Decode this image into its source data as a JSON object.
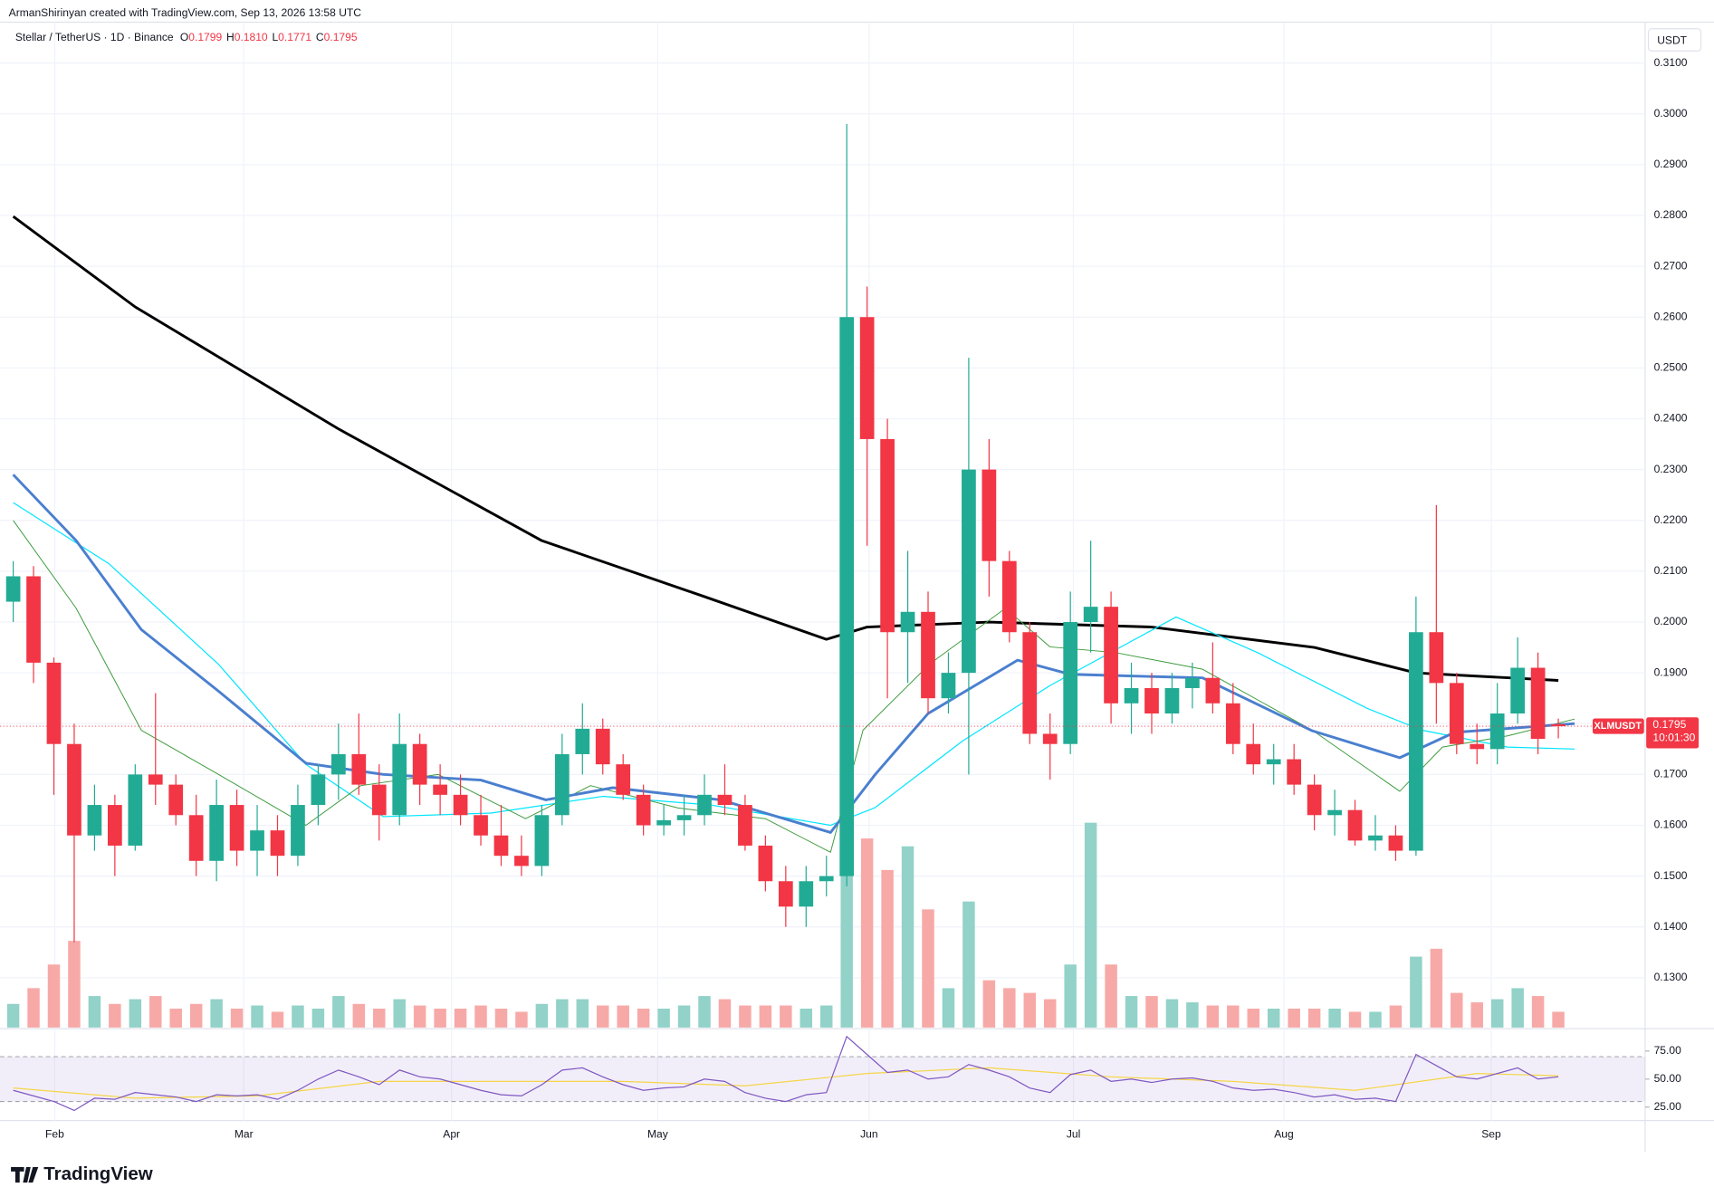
{
  "chart_data": {
    "type": "candlestick",
    "header": {
      "attribution": "ArmanShirinyan created with TradingView.com, Sep 13, 2026 13:58 UTC",
      "symbol": "Stellar / TetherUS · 1D · Binance",
      "ohlc": [
        {
          "key": "O",
          "value": "0.1799"
        },
        {
          "key": "H",
          "value": "0.1810"
        },
        {
          "key": "L",
          "value": "0.1771"
        },
        {
          "key": "C",
          "value": "0.1795"
        }
      ]
    },
    "currency": "USDT",
    "up_color": "#22ab94",
    "down_color": "#f23645",
    "up_volume_color": "#92d2c8",
    "down_volume_color": "#f7a9a7",
    "open": [
      0.204,
      0.209,
      0.192,
      0.176,
      0.158,
      0.164,
      0.156,
      0.17,
      0.168,
      0.162,
      0.153,
      0.164,
      0.155,
      0.159,
      0.154,
      0.164,
      0.17,
      0.174,
      0.168,
      0.162,
      0.176,
      0.168,
      0.166,
      0.162,
      0.158,
      0.154,
      0.152,
      0.162,
      0.174,
      0.179,
      0.172,
      0.166,
      0.16,
      0.161,
      0.162,
      0.166,
      0.164,
      0.156,
      0.149,
      0.144,
      0.149,
      0.15,
      0.26,
      0.236,
      0.198,
      0.202,
      0.185,
      0.19,
      0.23,
      0.212,
      0.198,
      0.178,
      0.176,
      0.2,
      0.203,
      0.184,
      0.187,
      0.182,
      0.187,
      0.189,
      0.184,
      0.176,
      0.172,
      0.173,
      0.168,
      0.162,
      0.163,
      0.157,
      0.158,
      0.155,
      0.198,
      0.188,
      0.176,
      0.175,
      0.182,
      0.191,
      0.1799
    ],
    "high": [
      0.212,
      0.211,
      0.193,
      0.18,
      0.168,
      0.166,
      0.172,
      0.186,
      0.17,
      0.166,
      0.169,
      0.167,
      0.164,
      0.162,
      0.168,
      0.172,
      0.18,
      0.182,
      0.172,
      0.182,
      0.178,
      0.172,
      0.17,
      0.166,
      0.164,
      0.158,
      0.164,
      0.178,
      0.184,
      0.181,
      0.174,
      0.168,
      0.164,
      0.166,
      0.17,
      0.172,
      0.166,
      0.158,
      0.152,
      0.152,
      0.154,
      0.298,
      0.266,
      0.24,
      0.214,
      0.206,
      0.194,
      0.252,
      0.236,
      0.214,
      0.2,
      0.182,
      0.206,
      0.216,
      0.206,
      0.192,
      0.19,
      0.19,
      0.192,
      0.196,
      0.188,
      0.18,
      0.176,
      0.176,
      0.17,
      0.167,
      0.165,
      0.162,
      0.16,
      0.205,
      0.223,
      0.19,
      0.18,
      0.188,
      0.197,
      0.194,
      0.181
    ],
    "low": [
      0.2,
      0.188,
      0.166,
      0.137,
      0.155,
      0.15,
      0.155,
      0.164,
      0.16,
      0.15,
      0.149,
      0.152,
      0.15,
      0.15,
      0.152,
      0.16,
      0.165,
      0.166,
      0.157,
      0.16,
      0.164,
      0.162,
      0.16,
      0.156,
      0.152,
      0.15,
      0.15,
      0.16,
      0.17,
      0.17,
      0.165,
      0.158,
      0.158,
      0.158,
      0.16,
      0.162,
      0.155,
      0.147,
      0.14,
      0.14,
      0.146,
      0.148,
      0.215,
      0.185,
      0.188,
      0.182,
      0.182,
      0.17,
      0.205,
      0.196,
      0.176,
      0.169,
      0.174,
      0.194,
      0.18,
      0.178,
      0.178,
      0.18,
      0.183,
      0.182,
      0.174,
      0.17,
      0.168,
      0.166,
      0.159,
      0.158,
      0.156,
      0.155,
      0.153,
      0.154,
      0.18,
      0.174,
      0.172,
      0.172,
      0.18,
      0.174,
      0.1771
    ],
    "close": [
      0.209,
      0.192,
      0.176,
      0.158,
      0.164,
      0.156,
      0.17,
      0.168,
      0.162,
      0.153,
      0.164,
      0.155,
      0.159,
      0.154,
      0.164,
      0.17,
      0.174,
      0.168,
      0.162,
      0.176,
      0.168,
      0.166,
      0.162,
      0.158,
      0.154,
      0.152,
      0.162,
      0.174,
      0.179,
      0.172,
      0.166,
      0.16,
      0.161,
      0.162,
      0.166,
      0.164,
      0.156,
      0.149,
      0.144,
      0.149,
      0.15,
      0.26,
      0.236,
      0.198,
      0.202,
      0.185,
      0.19,
      0.23,
      0.212,
      0.198,
      0.178,
      0.176,
      0.2,
      0.203,
      0.184,
      0.187,
      0.182,
      0.187,
      0.189,
      0.184,
      0.176,
      0.172,
      0.173,
      0.168,
      0.162,
      0.163,
      0.157,
      0.158,
      0.155,
      0.198,
      0.188,
      0.176,
      0.175,
      0.182,
      0.191,
      0.177,
      0.1795
    ],
    "volume": [
      15,
      25,
      40,
      55,
      20,
      15,
      18,
      20,
      12,
      15,
      18,
      12,
      14,
      10,
      14,
      12,
      20,
      15,
      12,
      18,
      14,
      12,
      12,
      14,
      12,
      10,
      15,
      18,
      18,
      14,
      14,
      12,
      12,
      14,
      20,
      18,
      14,
      14,
      14,
      12,
      14,
      130,
      120,
      100,
      115,
      75,
      25,
      80,
      30,
      25,
      22,
      18,
      40,
      130,
      40,
      20,
      20,
      18,
      16,
      14,
      14,
      12,
      12,
      12,
      12,
      12,
      10,
      10,
      14,
      45,
      50,
      22,
      16,
      18,
      25,
      20,
      10
    ],
    "xlim": [
      -0.65,
      80.27
    ],
    "xticks": [
      {
        "value": 2.04,
        "label": "Feb"
      },
      {
        "value": 11.34,
        "label": "Mar"
      },
      {
        "value": 21.56,
        "label": "Apr"
      },
      {
        "value": 31.7,
        "label": "May"
      },
      {
        "value": 42.1,
        "label": "Jun"
      },
      {
        "value": 52.15,
        "label": "Jul"
      },
      {
        "value": 62.5,
        "label": "Aug"
      },
      {
        "value": 72.7,
        "label": "Sep"
      }
    ],
    "ylim": [
      0.1202,
      0.3163
    ],
    "yticks": [
      {
        "value": 0.13,
        "label": "0.1300"
      },
      {
        "value": 0.14,
        "label": "0.1400"
      },
      {
        "value": 0.15,
        "label": "0.1500"
      },
      {
        "value": 0.16,
        "label": "0.1600"
      },
      {
        "value": 0.17,
        "label": "0.1700"
      },
      {
        "value": 0.18,
        "label": "0.1800"
      },
      {
        "value": 0.19,
        "label": "0.1900"
      },
      {
        "value": 0.2,
        "label": "0.2000"
      },
      {
        "value": 0.21,
        "label": "0.2100"
      },
      {
        "value": 0.22,
        "label": "0.2200"
      },
      {
        "value": 0.23,
        "label": "0.2300"
      },
      {
        "value": 0.24,
        "label": "0.2400"
      },
      {
        "value": 0.25,
        "label": "0.2500"
      },
      {
        "value": 0.26,
        "label": "0.2600"
      },
      {
        "value": 0.27,
        "label": "0.2700"
      },
      {
        "value": 0.28,
        "label": "0.2800"
      },
      {
        "value": 0.29,
        "label": "0.2900"
      },
      {
        "value": 0.3,
        "label": "0.3000"
      },
      {
        "value": 0.31,
        "label": "0.3100"
      }
    ],
    "lines": [
      {
        "color": "#000000",
        "width": 2.4,
        "x": [
          0,
          6,
          16,
          26,
          34,
          40,
          42,
          48,
          56,
          64,
          69,
          76
        ],
        "values": [
          0.2798,
          0.262,
          0.238,
          0.216,
          0.205,
          0.1966,
          0.199,
          0.2,
          0.199,
          0.195,
          0.19,
          0.1885
        ]
      },
      {
        "color": "#00e5ff",
        "width": 1,
        "x": [
          0,
          4.7,
          10.1,
          14.4,
          18.2,
          23.5,
          29,
          34.3,
          40.2,
          42.4,
          46.7,
          51,
          57.2,
          61.2,
          66.6,
          69.3,
          73.5,
          76.8
        ],
        "values": [
          0.2235,
          0.2115,
          0.1917,
          0.172,
          0.1617,
          0.1624,
          0.1657,
          0.164,
          0.16,
          0.1635,
          0.1766,
          0.1875,
          0.201,
          0.194,
          0.183,
          0.1787,
          0.1754,
          0.175
        ]
      },
      {
        "color": "#3c9a3c",
        "width": 0.8,
        "x": [
          0,
          3.1,
          6.3,
          10.1,
          14.4,
          17.1,
          20.9,
          25.2,
          28.4,
          32.7,
          37,
          40.2,
          41.8,
          45.1,
          48.8,
          51,
          54.2,
          58.5,
          63.9,
          68.2,
          70.3,
          73.5,
          76.8
        ],
        "values": [
          0.22,
          0.2027,
          0.1787,
          0.17,
          0.16,
          0.1678,
          0.17,
          0.1613,
          0.1678,
          0.1634,
          0.1613,
          0.1547,
          0.1787,
          0.1918,
          0.2027,
          0.1951,
          0.194,
          0.1907,
          0.1787,
          0.1667,
          0.1754,
          0.1776,
          0.1809
        ]
      },
      {
        "color": "#4a7fcf",
        "width": 2.4,
        "x": [
          0,
          3.1,
          6.3,
          10.1,
          14.4,
          18.2,
          23,
          26.2,
          29.5,
          34.8,
          40.2,
          42.4,
          45,
          49.4,
          52,
          58.5,
          63.9,
          68.2,
          70.9,
          76.8
        ],
        "values": [
          0.229,
          0.216,
          0.1985,
          0.1864,
          0.1722,
          0.17,
          0.1689,
          0.165,
          0.1674,
          0.165,
          0.1586,
          0.17,
          0.182,
          0.1925,
          0.1897,
          0.189,
          0.1786,
          0.1733,
          0.1783,
          0.18
        ]
      }
    ],
    "last_price": {
      "symbol": "XLMUSDT",
      "value": 0.1795,
      "label": "0.1795",
      "countdown": "10:01:30"
    },
    "rsi": {
      "ylim": [
        13,
        94
      ],
      "yticks": [
        {
          "value": 75,
          "label": "75.00"
        },
        {
          "value": 50,
          "label": "50.00"
        },
        {
          "value": 25,
          "label": "25.00"
        }
      ],
      "band": [
        30,
        70
      ],
      "color": "#7e57c2",
      "values": [
        40,
        35,
        30,
        22,
        33,
        32,
        38,
        36,
        34,
        30,
        36,
        35,
        36,
        32,
        40,
        50,
        58,
        52,
        45,
        58,
        52,
        50,
        45,
        40,
        36,
        35,
        45,
        58,
        60,
        52,
        45,
        40,
        42,
        43,
        50,
        48,
        38,
        33,
        30,
        36,
        38,
        88,
        72,
        56,
        58,
        50,
        52,
        63,
        58,
        52,
        42,
        38,
        54,
        58,
        48,
        50,
        47,
        50,
        51,
        48,
        42,
        40,
        41,
        38,
        34,
        36,
        32,
        33,
        30,
        72,
        62,
        52,
        50,
        55,
        60,
        50,
        52
      ],
      "ma": {
        "color": "#f5d547",
        "x": [
          0,
          6,
          12,
          18,
          24,
          30,
          36,
          42,
          48,
          54,
          60,
          66,
          72,
          76
        ],
        "values": [
          42,
          33,
          35,
          48,
          48,
          48,
          44,
          55,
          60,
          52,
          48,
          40,
          55,
          53
        ]
      }
    },
    "logo": "TradingView"
  }
}
